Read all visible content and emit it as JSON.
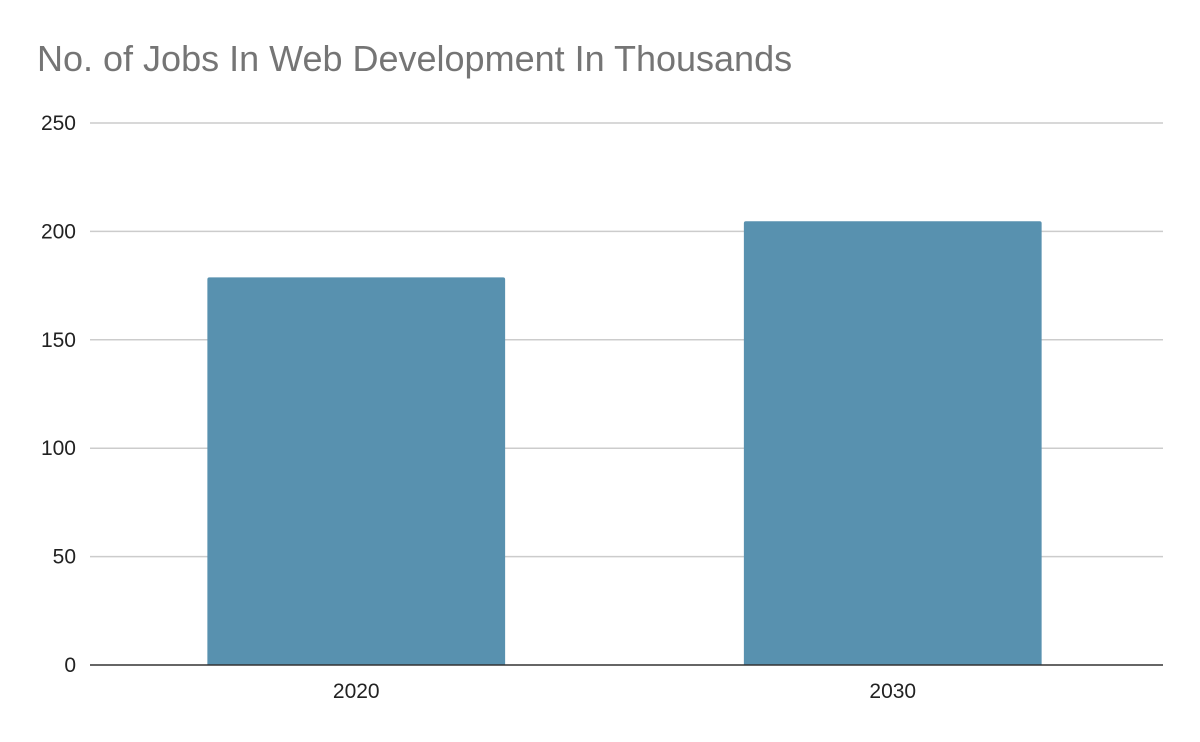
{
  "chart_data": {
    "type": "bar",
    "title": "No. of Jobs In Web Development In Thousands",
    "xlabel": "",
    "ylabel": "",
    "categories": [
      "2020",
      "2030"
    ],
    "values": [
      178.8,
      204.7
    ],
    "ylim": [
      0,
      250
    ],
    "yticks": [
      0,
      50,
      100,
      150,
      200,
      250
    ],
    "grid": true,
    "legend": "none",
    "colors": {
      "bar": "#5891AF",
      "grid": "#CCCCCC",
      "axis": "#333333",
      "title": "#757575",
      "tick_label": "#222222"
    }
  }
}
